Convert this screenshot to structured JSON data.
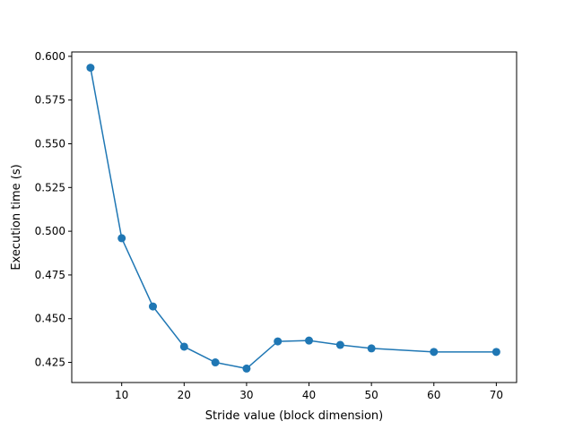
{
  "chart_data": {
    "type": "line",
    "title": "",
    "xlabel": "Stride value (block dimension)",
    "ylabel": "Execution time (s)",
    "xlim": [
      2,
      73.25
    ],
    "ylim": [
      0.4135,
      0.6025
    ],
    "xticks": [
      10,
      20,
      30,
      40,
      50,
      60,
      70
    ],
    "xtick_labels": [
      "10",
      "20",
      "30",
      "40",
      "50",
      "60",
      "70"
    ],
    "yticks": [
      0.425,
      0.45,
      0.475,
      0.5,
      0.525,
      0.55,
      0.575,
      0.6
    ],
    "ytick_labels": [
      "0.425",
      "0.450",
      "0.475",
      "0.500",
      "0.525",
      "0.550",
      "0.575",
      "0.600"
    ],
    "grid": false,
    "series": [
      {
        "color": "#1f77b4",
        "marker": "circle",
        "x": [
          5,
          10,
          15,
          20,
          25,
          30,
          35,
          40,
          45,
          50,
          60,
          70
        ],
        "y": [
          0.5935,
          0.496,
          0.457,
          0.434,
          0.425,
          0.4215,
          0.437,
          0.4375,
          0.435,
          0.433,
          0.431,
          0.431
        ]
      }
    ]
  }
}
